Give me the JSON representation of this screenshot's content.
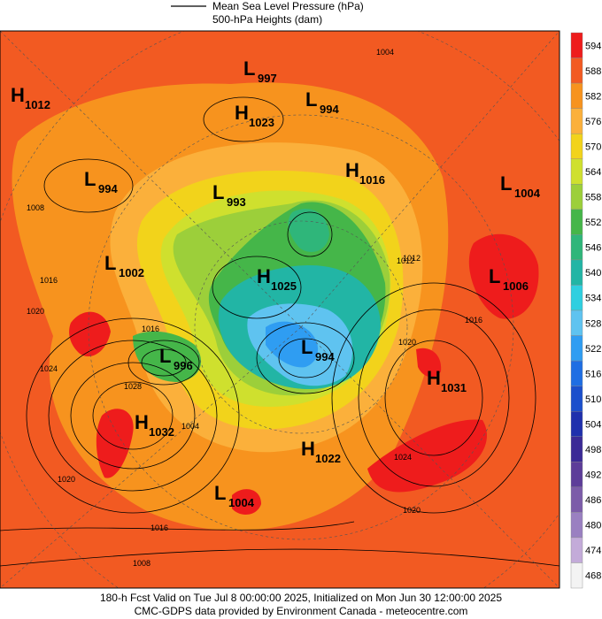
{
  "legend": {
    "line_label": "Mean Sea Level Pressure (hPa)",
    "fill_label": "500-hPa Heights (dam)"
  },
  "colorbar": {
    "levels": [
      594,
      588,
      582,
      576,
      570,
      564,
      558,
      552,
      546,
      540,
      534,
      528,
      522,
      516,
      510,
      504,
      498,
      492,
      486,
      480,
      474,
      468
    ],
    "colors": [
      "#ee1c1c",
      "#f25a22",
      "#f7931e",
      "#fbb03b",
      "#f2d31b",
      "#cfe02e",
      "#9ccf3a",
      "#45b649",
      "#2fb67a",
      "#22b5a5",
      "#2fcfe0",
      "#5fc3f0",
      "#2f9df2",
      "#1f6ee3",
      "#1b4fcc",
      "#1f30ad",
      "#3b2a96",
      "#5d3d99",
      "#7c5ca9",
      "#9a80c1",
      "#c3abd9",
      "#f3f3f3"
    ]
  },
  "centers": [
    {
      "letter": "H",
      "value": 1012
    },
    {
      "letter": "L",
      "value": 997
    },
    {
      "letter": "H",
      "value": 1023
    },
    {
      "letter": "L",
      "value": 994
    },
    {
      "letter": "L",
      "value": 994
    },
    {
      "letter": "L",
      "value": 993
    },
    {
      "letter": "H",
      "value": 1016
    },
    {
      "letter": "L",
      "value": 1004
    },
    {
      "letter": "L",
      "value": 1002
    },
    {
      "letter": "H",
      "value": 1025
    },
    {
      "letter": "L",
      "value": 1006
    },
    {
      "letter": "L",
      "value": 996
    },
    {
      "letter": "L",
      "value": 994
    },
    {
      "letter": "H",
      "value": 1031
    },
    {
      "letter": "H",
      "value": 1032
    },
    {
      "letter": "H",
      "value": 1022
    },
    {
      "letter": "L",
      "value": 1004
    }
  ],
  "contour_labels": [
    1004,
    1008,
    1016,
    1020,
    1024,
    1028,
    1020,
    1016,
    1016,
    1012,
    1020,
    1024,
    1020,
    1016,
    1008,
    1004,
    1012
  ],
  "footer": {
    "line1": "180-h Fcst Valid on Tue Jul  8 00:00:00 2025, Initialized on Mon Jun 30 12:00:00 2025",
    "line2": "CMC-GDPS data provided by Environment Canada - meteocentre.com"
  }
}
